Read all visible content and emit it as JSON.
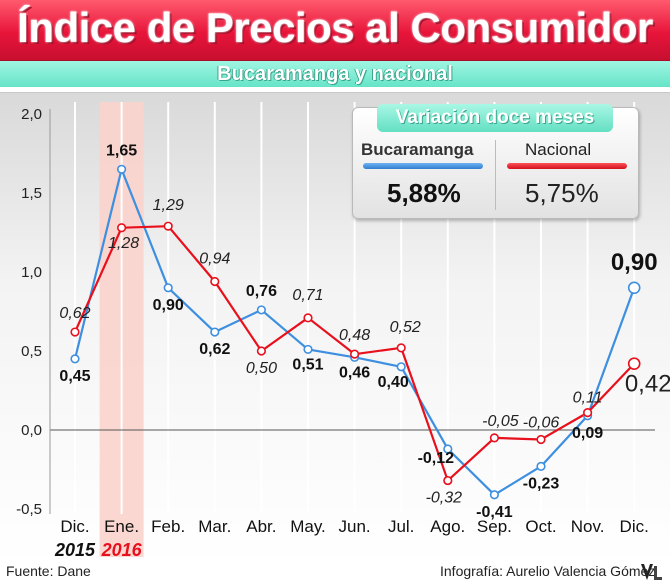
{
  "header": {
    "title": "Índice de Precios al Consumidor",
    "subtitle": "Bucaramanga  y nacional"
  },
  "legend": {
    "heading": "Variación doce meses",
    "items": [
      {
        "name": "Bucaramanga",
        "value": "5,88%",
        "color": "#3d8fe0"
      },
      {
        "name": "Nacional",
        "value": "5,75%",
        "color": "#e8101c"
      }
    ]
  },
  "footer": {
    "source": "Fuente: Dane",
    "credit": "Infografía: Aurelio Valencia Gómez"
  },
  "chart_data": {
    "type": "line",
    "categories": [
      "Dic.",
      "Ene.",
      "Feb.",
      "Mar.",
      "Abr.",
      "May.",
      "Jun.",
      "Jul.",
      "Ago.",
      "Sep.",
      "Oct.",
      "Nov.",
      "Dic."
    ],
    "year_labels": [
      {
        "text": "2015",
        "index": 0,
        "color": "#111111"
      },
      {
        "text": "2016",
        "index": 1,
        "color": "#e8101c"
      }
    ],
    "highlight_index": 1,
    "y_ticks": [
      "2,0",
      "1,5",
      "1,0",
      "0,5",
      "0,0",
      "-0,5"
    ],
    "ylim": [
      -0.5,
      2.0
    ],
    "grid": true,
    "legend_position": "top-right",
    "series": [
      {
        "name": "Bucaramanga",
        "color": "#3d8fe0",
        "values": [
          0.45,
          1.65,
          0.9,
          0.62,
          0.76,
          0.51,
          0.46,
          0.4,
          -0.12,
          -0.41,
          -0.23,
          0.09,
          0.9
        ],
        "labels": [
          "0,45",
          "1,65",
          "0,90",
          "0,62",
          "0,76",
          "0,51",
          "0,46",
          "0,40",
          "-0,12",
          "-0,41",
          "-0,23",
          "0,09",
          "0,90"
        ]
      },
      {
        "name": "Nacional",
        "color": "#e8101c",
        "values": [
          0.62,
          1.28,
          1.29,
          0.94,
          0.5,
          0.71,
          0.48,
          0.52,
          -0.32,
          -0.05,
          -0.06,
          0.11,
          0.42
        ],
        "labels": [
          "0,62",
          "1,28",
          "1,29",
          "0,94",
          "0,50",
          "0,71",
          "0,48",
          "0,52",
          "-0,32",
          "-0,05",
          "-0,06",
          "0,11",
          "0,42"
        ]
      }
    ]
  }
}
